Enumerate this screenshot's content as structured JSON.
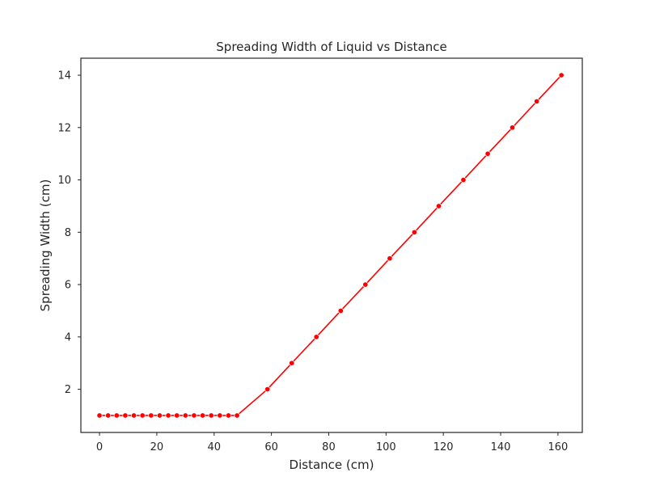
{
  "chart_data": {
    "type": "line",
    "title": "Spreading Width of Liquid vs Distance",
    "xlabel": "Distance (cm)",
    "ylabel": "Spreading Width (cm)",
    "xlim": [
      -6.5,
      168.5
    ],
    "ylim": [
      0.35,
      14.65
    ],
    "xticks": [
      0,
      20,
      40,
      60,
      80,
      100,
      120,
      140,
      160
    ],
    "yticks": [
      2,
      4,
      6,
      8,
      10,
      12,
      14
    ],
    "xtick_labels": [
      "0",
      "20",
      "40",
      "60",
      "80",
      "100",
      "120",
      "140",
      "160"
    ],
    "ytick_labels": [
      "2",
      "4",
      "6",
      "8",
      "10",
      "12",
      "14"
    ],
    "grid": false,
    "legend": false,
    "series": [
      {
        "color": "#ff0000",
        "marker": "circle",
        "x": [
          0,
          3,
          6,
          9,
          12,
          15,
          18,
          21,
          24,
          27,
          30,
          33,
          36,
          39,
          42,
          45,
          48,
          58.6,
          67.1,
          75.7,
          84.2,
          92.8,
          101.3,
          109.9,
          118.4,
          127,
          135.5,
          144.1,
          152.6,
          161.2
        ],
        "y": [
          1,
          1,
          1,
          1,
          1,
          1,
          1,
          1,
          1,
          1,
          1,
          1,
          1,
          1,
          1,
          1,
          1,
          2,
          3,
          4,
          5,
          6,
          7,
          8,
          9,
          10,
          11,
          12,
          13,
          14
        ]
      }
    ]
  }
}
